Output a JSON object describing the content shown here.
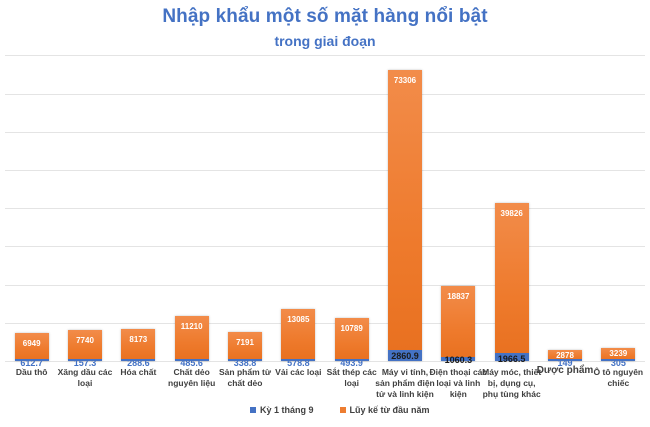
{
  "chart_data": {
    "type": "bar",
    "stacked": true,
    "title": "Nhập khẩu một số mặt hàng nổi bật",
    "subtitle": "trong giai đoạn",
    "xlabel": "",
    "ylabel": "",
    "grid": true,
    "legend_position": "bottom",
    "categories": [
      "Dầu thô",
      "Xăng dầu các loại",
      "Hóa chất",
      "Chất dẻo nguyên liệu",
      "Sản phẩm từ chất dẻo",
      "Vải các loại",
      "Sắt thép các loại",
      "Máy vi tính, sản phẩm điện tử và linh kiện",
      "Điện thoại các loại và linh kiện",
      "Máy móc, thiết bị, dụng cụ, phụ tùng khác",
      "Dược phẩm",
      "Ô tô nguyên chiếc"
    ],
    "category_lines": [
      [
        "Dầu thô"
      ],
      [
        "Xăng dầu các",
        "loại"
      ],
      [
        "Hóa chất"
      ],
      [
        "Chất dẻo",
        "nguyên liệu"
      ],
      [
        "Sản phẩm từ",
        "chất dẻo"
      ],
      [
        "Vải các loại"
      ],
      [
        "Sắt thép các",
        "loại"
      ],
      [
        "Máy vi tính,",
        "sản phẩm điện",
        "tử và linh kiện"
      ],
      [
        "Điện thoại các",
        "loại và linh",
        "kiện"
      ],
      [
        "Máy móc, thiết",
        "bị, dụng cụ,",
        "phụ tùng khác"
      ],
      [
        "Dược phẩm"
      ],
      [
        "Ô tô nguyên",
        "chiếc"
      ]
    ],
    "series": [
      {
        "name": "Kỳ 1 tháng 9",
        "color": "#4472C4",
        "values": [
          612.7,
          157.3,
          288.6,
          485.6,
          338.8,
          578.8,
          493.9,
          2860.9,
          1060.3,
          1966.5,
          149,
          305
        ]
      },
      {
        "name": "Lũy kế từ đầu năm",
        "color": "#ED7D31",
        "values": [
          6949,
          7740,
          8173,
          11210,
          7191,
          13085,
          10789,
          73306,
          18837,
          39826,
          2878,
          3239
        ]
      }
    ],
    "ylim": [
      0,
      80000
    ],
    "value_labels": {
      "Kỳ 1 tháng 9": [
        "612.7",
        "157.3",
        "288.6",
        "485.6",
        "338.8",
        "578.8",
        "493.9",
        "2860.9",
        "1060.3",
        "1966.5",
        "149",
        "305"
      ],
      "Lũy kế từ đầu năm": [
        "6949",
        "7740",
        "8173",
        "11210",
        "7191",
        "13085",
        "10789",
        "73306",
        "18837",
        "39826",
        "2878",
        "3239"
      ]
    }
  },
  "legend": {
    "items": [
      {
        "label": "Kỳ 1 tháng 9",
        "color": "#4472C4"
      },
      {
        "label": "Lũy kế từ đầu năm",
        "color": "#ED7D31"
      }
    ]
  }
}
